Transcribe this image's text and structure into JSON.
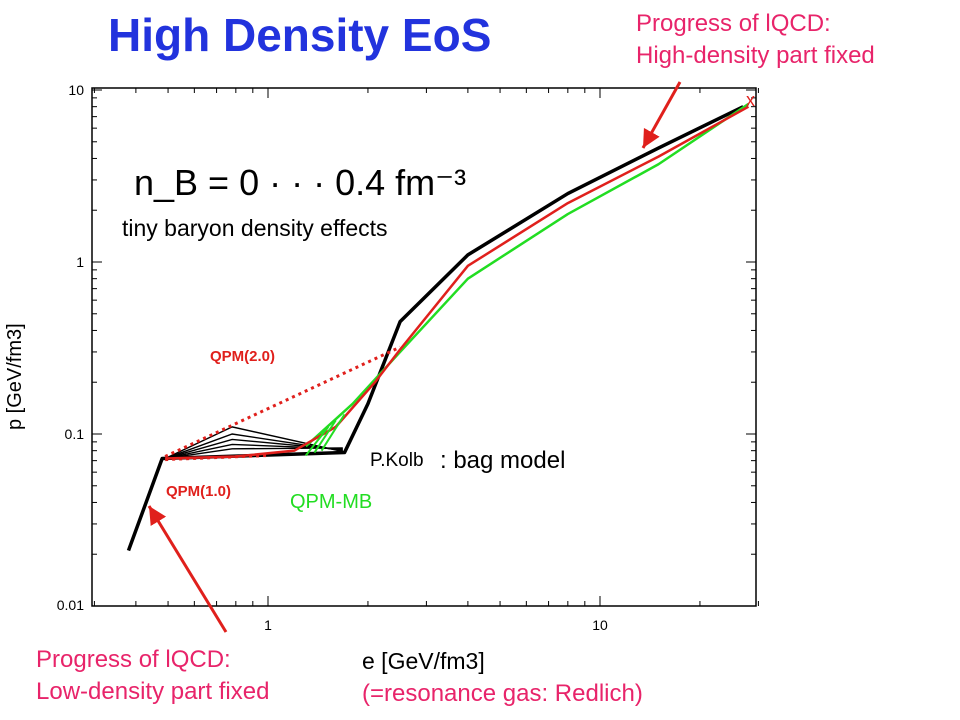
{
  "slide": {
    "title": "High Density EoS",
    "note_top": [
      "Progress of lQCD:",
      "High-density part fixed"
    ],
    "note_bottom": [
      "Progress of lQCD:",
      "Low-density part fixed"
    ],
    "x_note": "(=resonance gas: Redlich)"
  },
  "colors": {
    "title": "#2233dd",
    "annotation": "#e8246a",
    "lattice_black": "#000000",
    "qpm_red": "#e0201c",
    "qpm_mb_green": "#22dd22"
  },
  "chart_data": {
    "type": "line",
    "xlabel": "e [GeV/fm3]",
    "ylabel": "p [GeV/fm3]",
    "x_scale": "log",
    "y_scale": "log",
    "xlim": [
      0.3,
      30
    ],
    "ylim": [
      0.01,
      10
    ],
    "x_ticks": [
      "1",
      "10"
    ],
    "y_ticks": [
      "0.01",
      "0.1",
      "1",
      "10"
    ],
    "grid": false,
    "annotations": {
      "density_formula": "n_B = 0 · · · 0.4  fm⁻³",
      "density_note": "tiny baryon density effects",
      "qpm2": "QPM(2.0)",
      "qpm1": "QPM(1.0)",
      "qpm_mb": "QPM-MB",
      "pkolb": "P.Kolb",
      "bag": ": bag model"
    },
    "series": [
      {
        "name": "P.Kolb",
        "style": "black",
        "x": [
          0.38,
          0.48,
          1.7,
          2.0,
          2.5,
          4,
          8,
          15,
          27
        ],
        "y": [
          0.021,
          0.072,
          0.078,
          0.15,
          0.45,
          1.1,
          2.5,
          4.6,
          8.0
        ]
      },
      {
        "name": "QPM(2.0)",
        "style": "red-dotted",
        "x": [
          0.49,
          2.5
        ],
        "y": [
          0.074,
          0.32
        ]
      },
      {
        "name": "QPM(1.0)",
        "style": "red-dotted",
        "x": [
          0.49,
          1.0
        ],
        "y": [
          0.071,
          0.075
        ]
      },
      {
        "name": "QPM",
        "style": "red",
        "x": [
          0.49,
          0.8,
          1.2,
          1.6,
          2.1,
          2.5,
          4,
          8,
          15,
          28
        ],
        "y": [
          0.072,
          0.074,
          0.08,
          0.11,
          0.2,
          0.31,
          0.95,
          2.2,
          4.1,
          8.0
        ]
      },
      {
        "name": "QPM-MB",
        "style": "green",
        "x": [
          1.3,
          1.8,
          2.5,
          4,
          8,
          15,
          28
        ],
        "y": [
          0.085,
          0.15,
          0.3,
          0.8,
          1.9,
          3.7,
          8.3
        ]
      }
    ]
  }
}
